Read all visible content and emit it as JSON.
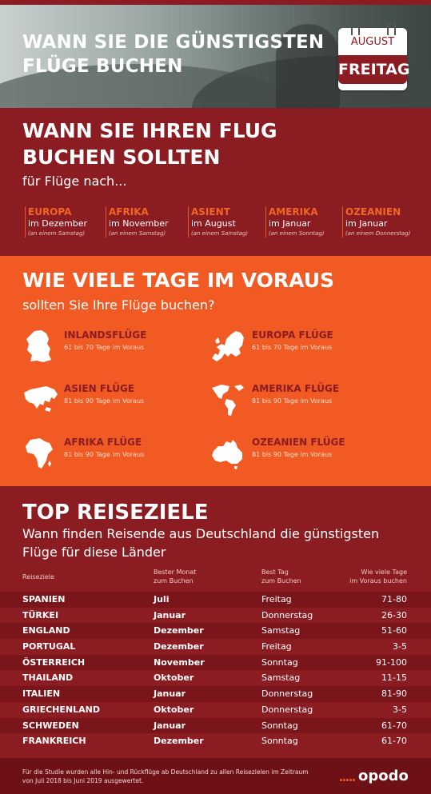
{
  "hero": {
    "title_line1": "WANN SIE DIE GÜNSTIGSTEN",
    "title_line2": "FLÜGE BUCHEN",
    "calendar_month": "AUGUST",
    "calendar_day": "FREITAG"
  },
  "when": {
    "title_line1": "WANN SIE IHREN FLUG",
    "title_line2": "BUCHEN SOLLTEN",
    "subtitle": "für Flüge nach...",
    "regions": [
      {
        "name": "EUROPA",
        "month": "im Dezember",
        "day": "(an einem Samstag)"
      },
      {
        "name": "AFRIKA",
        "month": "im November",
        "day": "(an einem  Samstag)"
      },
      {
        "name": "ASIENT",
        "month": "im August",
        "day": "(an einem Samstag)"
      },
      {
        "name": "AMERIKA",
        "month": "im Januar",
        "day": "(an einem Sonntag)"
      },
      {
        "name": "OZEANIEN",
        "month": "im Januar",
        "day": "(an einem Donnerstag)"
      }
    ]
  },
  "advance": {
    "title": "WIE VIELE TAGE IM VORAUS",
    "subtitle": "sollten Sie Ihre Flüge buchen?",
    "items": [
      {
        "title": "INLANDSFLÜGE",
        "days": "61 bis 70 Tage im Voraus",
        "icon": "germany-map-icon"
      },
      {
        "title": "EUROPA FLÜGE",
        "days": "61 bis 70 Tage im Voraus",
        "icon": "europe-map-icon"
      },
      {
        "title": "ASIEN FLÜGE",
        "days": "81 bis 90 Tage im Voraus",
        "icon": "asia-map-icon"
      },
      {
        "title": "AMERIKA FLÜGE",
        "days": "81 bis 90 Tage im Voraus",
        "icon": "americas-map-icon"
      },
      {
        "title": "AFRIKA FLÜGE",
        "days": "81 bis 90 Tage im Voraus",
        "icon": "africa-map-icon"
      },
      {
        "title": "OZEANIEN FLÜGE",
        "days": "81 bis 90 Tage im Voraus",
        "icon": "australia-map-icon"
      }
    ]
  },
  "top": {
    "title": "TOP REISEZIELE",
    "subtitle": "Wann finden Reisende aus Deutschland die günstigsten Flüge für diese Länder",
    "headers": {
      "destination": "Reiseziele",
      "month_line1": "Bester Monat",
      "month_line2": "zum Buchen",
      "day_line1": "Best Tag",
      "day_line2": "zum Buchen",
      "days_line1": "Wie viele Tage",
      "days_line2": "im Voraus buchen"
    },
    "rows": [
      {
        "country": "SPANIEN",
        "month": "Juli",
        "day": "Freitag",
        "days": "71-80"
      },
      {
        "country": "TÜRKEI",
        "month": "Januar",
        "day": "Donnerstag",
        "days": "26-30"
      },
      {
        "country": "ENGLAND",
        "month": "Dezember",
        "day": "Samstag",
        "days": "51-60"
      },
      {
        "country": "PORTUGAL",
        "month": "Dezember",
        "day": "Freitag",
        "days": "3-5"
      },
      {
        "country": "ÖSTERREICH",
        "month": "November",
        "day": "Sonntag",
        "days": "91-100"
      },
      {
        "country": "THAILAND",
        "month": "Oktober",
        "day": "Samstag",
        "days": "11-15"
      },
      {
        "country": "ITALIEN",
        "month": "Januar",
        "day": "Donnerstag",
        "days": "81-90"
      },
      {
        "country": "GRIECHENLAND",
        "month": "Oktober",
        "day": "Donnerstag",
        "days": "3-5"
      },
      {
        "country": "SCHWEDEN",
        "month": "Januar",
        "day": "Sonntag",
        "days": "61-70"
      },
      {
        "country": "FRANKREICH",
        "month": "Dezember",
        "day": "Sonntag",
        "days": "61-70"
      }
    ]
  },
  "footer": {
    "note": "Für die Studie wurden alle Hin- und Rückflüge ab Deutschland zu allen Reisezielen im Zeitraum von Juli 2018 bis Juni 2019 ausgewertet.",
    "logo": "opodo"
  },
  "colors": {
    "brand_red": "#8a1c22",
    "brand_orange": "#f15a22"
  }
}
